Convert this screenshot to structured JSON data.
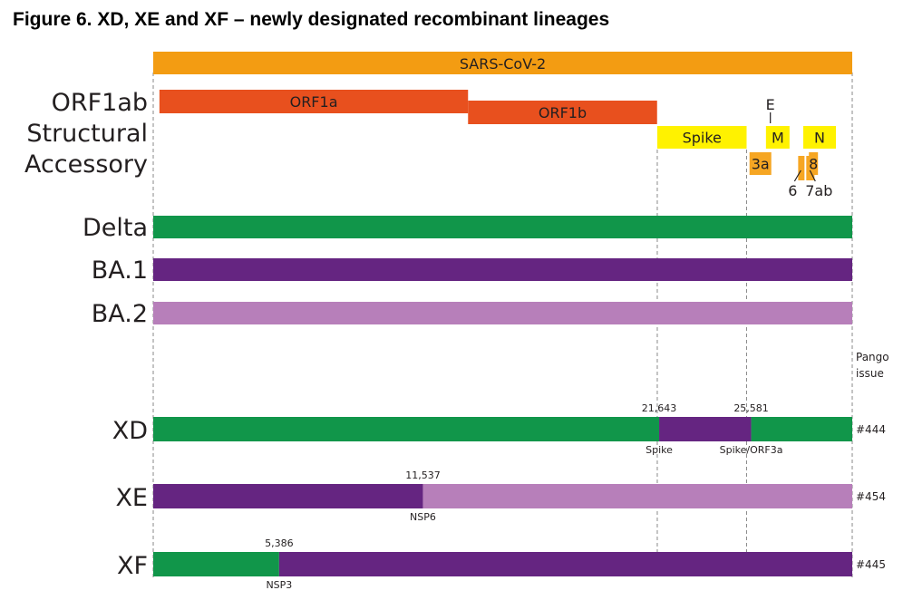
{
  "title": "Figure 6. XD, XE and XF – newly designated recombinant lineages",
  "colors": {
    "genome": "#f39c12",
    "orf1": "#e8501e",
    "structural": "#fff200",
    "accessory": "#f6a623",
    "delta": "#11964a",
    "ba1": "#652581",
    "ba2": "#b77fba"
  },
  "genome": {
    "label": "SARS-CoV-2",
    "length": 29903
  },
  "genome_rows": {
    "orf1ab": "ORF1ab",
    "structural": "Structural",
    "accessory": "Accessory"
  },
  "genes": [
    {
      "name": "ORF1a",
      "row": "orf1ab",
      "start": 266,
      "end": 13468,
      "color": "orf1",
      "label": "ORF1a"
    },
    {
      "name": "ORF1b",
      "row": "orf1ab_low",
      "start": 13468,
      "end": 21555,
      "color": "orf1",
      "label": "ORF1b"
    },
    {
      "name": "Spike",
      "row": "structural",
      "start": 21563,
      "end": 25384,
      "color": "structural",
      "label": "Spike"
    },
    {
      "name": "E",
      "row": "structural_small",
      "start": 26245,
      "end": 26472,
      "color": "structural",
      "label": "E"
    },
    {
      "name": "M",
      "row": "structural",
      "start": 26523,
      "end": 27191,
      "color": "structural",
      "label": "M"
    },
    {
      "name": "N",
      "row": "structural",
      "start": 28274,
      "end": 29533,
      "color": "structural",
      "label": "N"
    },
    {
      "name": "3a",
      "row": "accessory",
      "start": 25393,
      "end": 26220,
      "color": "accessory",
      "label": "3a"
    },
    {
      "name": "6",
      "row": "accessory_low",
      "start": 27202,
      "end": 27387,
      "color": "accessory",
      "label": "6"
    },
    {
      "name": "7ab",
      "row": "accessory_low",
      "start": 27394,
      "end": 27887,
      "color": "accessory",
      "label": "7ab"
    },
    {
      "name": "8",
      "row": "accessory",
      "start": 27894,
      "end": 28259,
      "color": "accessory",
      "label": "8"
    }
  ],
  "guides": [
    21563,
    25384
  ],
  "parent_lineages": [
    {
      "label": "Delta",
      "color": "delta"
    },
    {
      "label": "BA.1",
      "color": "ba1"
    },
    {
      "label": "BA.2",
      "color": "ba2"
    }
  ],
  "pango_header": [
    "Pango",
    "issue"
  ],
  "recombinants": [
    {
      "label": "XD",
      "issue": "#444",
      "segments": [
        {
          "start": 0,
          "end": 21643,
          "color": "delta"
        },
        {
          "start": 21643,
          "end": 25581,
          "color": "ba1"
        },
        {
          "start": 25581,
          "end": 29903,
          "color": "delta"
        }
      ],
      "breakpoints": [
        {
          "pos": 21643,
          "value": "21,643",
          "region": "Spike"
        },
        {
          "pos": 25581,
          "value": "25,581",
          "region": "Spike/ORF3a"
        }
      ]
    },
    {
      "label": "XE",
      "issue": "#454",
      "segments": [
        {
          "start": 0,
          "end": 11537,
          "color": "ba1"
        },
        {
          "start": 11537,
          "end": 29903,
          "color": "ba2"
        }
      ],
      "breakpoints": [
        {
          "pos": 11537,
          "value": "11,537",
          "region": "NSP6"
        }
      ]
    },
    {
      "label": "XF",
      "issue": "#445",
      "segments": [
        {
          "start": 0,
          "end": 5386,
          "color": "delta"
        },
        {
          "start": 5386,
          "end": 29903,
          "color": "ba1"
        }
      ],
      "breakpoints": [
        {
          "pos": 5386,
          "value": "5,386",
          "region": "NSP3"
        }
      ]
    }
  ]
}
